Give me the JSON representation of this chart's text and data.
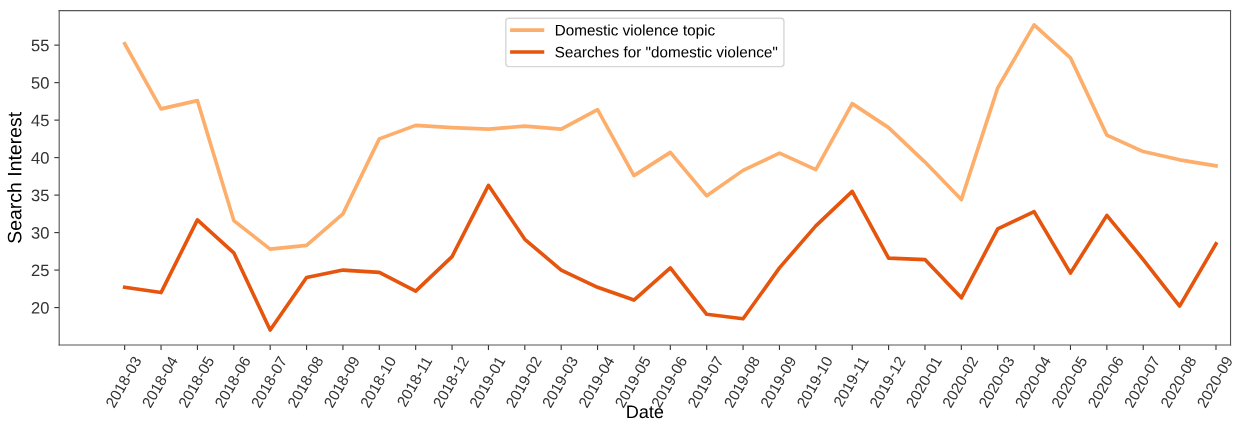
{
  "chart_data": {
    "type": "line",
    "xlabel": "Date",
    "ylabel": "Search Interest",
    "categories": [
      "2018-03",
      "2018-04",
      "2018-05",
      "2018-06",
      "2018-07",
      "2018-08",
      "2018-09",
      "2018-10",
      "2018-11",
      "2018-12",
      "2019-01",
      "2019-02",
      "2019-03",
      "2019-04",
      "2019-05",
      "2019-06",
      "2019-07",
      "2019-08",
      "2019-09",
      "2019-10",
      "2019-11",
      "2019-12",
      "2020-01",
      "2020-02",
      "2020-03",
      "2020-04",
      "2020-05",
      "2020-06",
      "2020-07",
      "2020-08",
      "2020-09"
    ],
    "series": [
      {
        "name": "Domestic violence topic",
        "color": "#fdae6b",
        "values": [
          55.2,
          46.5,
          47.6,
          31.6,
          27.8,
          28.3,
          32.5,
          42.5,
          44.3,
          44.0,
          43.8,
          44.2,
          43.8,
          46.4,
          37.6,
          40.7,
          34.9,
          38.3,
          40.6,
          38.4,
          47.2,
          44.0,
          39.4,
          34.4,
          49.3,
          57.7,
          53.3,
          43.0,
          40.8,
          39.7,
          38.9
        ]
      },
      {
        "name": "Searches for \"domestic violence\"",
        "color": "#e6550d",
        "values": [
          22.7,
          22.0,
          31.7,
          27.3,
          17.0,
          24.0,
          25.0,
          24.7,
          22.2,
          26.8,
          36.3,
          29.1,
          25.0,
          22.7,
          21.0,
          25.3,
          19.1,
          18.5,
          25.3,
          30.9,
          35.5,
          26.6,
          26.4,
          21.3,
          30.5,
          32.8,
          24.6,
          32.3,
          26.4,
          20.2,
          28.5
        ]
      }
    ],
    "ylim": [
      15,
      59.6
    ],
    "yticks": [
      20,
      25,
      30,
      35,
      40,
      45,
      50,
      55
    ],
    "grid": false,
    "legend": "top",
    "marker": "none",
    "line_style": "solid"
  }
}
